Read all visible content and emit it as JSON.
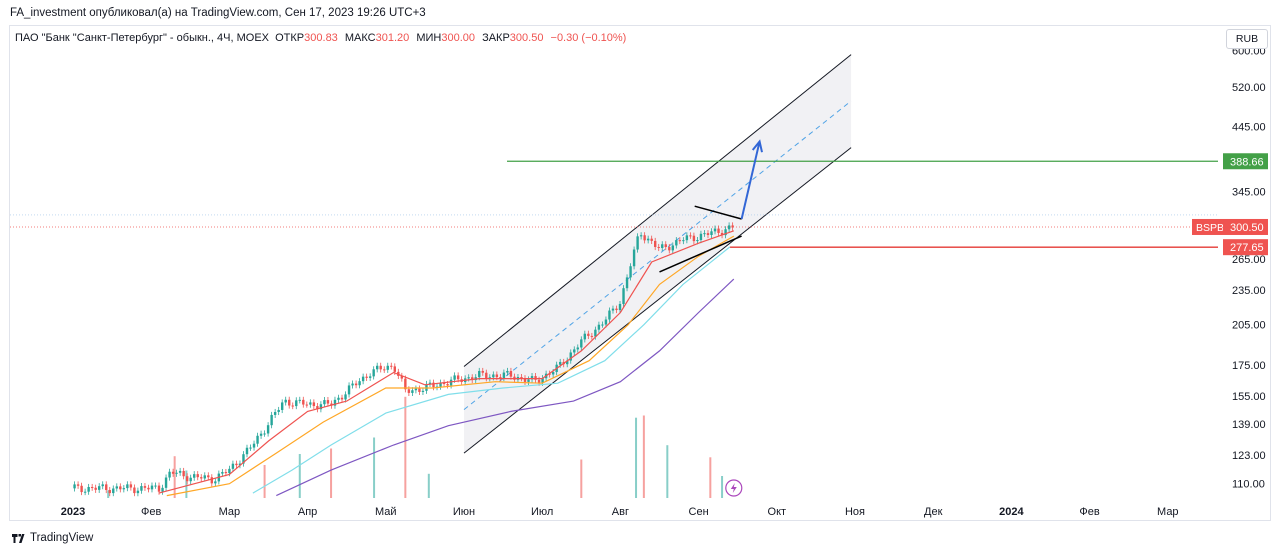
{
  "header": {
    "caption": "FA_investment опубликовал(а) на TradingView.com, Сен 17, 2023 19:26 UTC+3"
  },
  "legend": {
    "symbol": "ПАО \"Банк \"Санкт-Петербург\" - обыкн., 4Ч, MOEX",
    "open_label": "ОТКР",
    "open": "300.83",
    "high_label": "МАКС",
    "high": "301.20",
    "low_label": "МИН",
    "low": "300.00",
    "close_label": "ЗАКР",
    "close": "300.50",
    "change": "−0.30 (−0.10%)"
  },
  "currency": "RUB",
  "footer": {
    "brand": "TradingView"
  },
  "colors": {
    "up": "#26a69a",
    "down": "#ef5350",
    "channel": "#131722",
    "channel_fill": "#eeeff2",
    "midline": "#4fa3e6",
    "arrow": "#3367d6",
    "resistance": "#43a047",
    "support": "#e53935",
    "ma_fast": "#ef5350",
    "ma_mid": "#ffa726",
    "ma_slow": "#80deea",
    "ma_long": "#7e57c2",
    "lightning": "#ab47bc"
  },
  "chart_data": {
    "type": "candlestick",
    "y_scale": "log",
    "ylim": [
      104,
      660
    ],
    "y_ticks": [
      600.0,
      520.0,
      445.0,
      345.0,
      265.0,
      235.0,
      205.0,
      175.0,
      155.0,
      139.0,
      123.0,
      110.0
    ],
    "x_labels": [
      "2023",
      "Фев",
      "Мар",
      "Апр",
      "Май",
      "Июн",
      "Июл",
      "Авг",
      "Сен",
      "Окт",
      "Ноя",
      "Дек",
      "2024",
      "Фев",
      "Мар"
    ],
    "price_badges": [
      {
        "text": "388.66",
        "value": 388.66,
        "kind": "resistance"
      },
      {
        "ticker": "BSPB",
        "text": "300.50",
        "value": 300.5,
        "kind": "last"
      },
      {
        "text": "277.65",
        "value": 277.65,
        "kind": "support"
      }
    ],
    "price_path": [
      [
        0.0,
        108
      ],
      [
        1.1,
        108
      ],
      [
        1.25,
        115
      ],
      [
        1.5,
        113
      ],
      [
        1.8,
        112
      ],
      [
        2.0,
        116
      ],
      [
        2.3,
        128
      ],
      [
        2.7,
        152
      ],
      [
        3.0,
        150
      ],
      [
        3.3,
        150
      ],
      [
        3.5,
        158
      ],
      [
        3.8,
        170
      ],
      [
        4.1,
        175
      ],
      [
        4.25,
        158
      ],
      [
        4.5,
        160
      ],
      [
        4.8,
        164
      ],
      [
        5.2,
        168
      ],
      [
        5.6,
        168
      ],
      [
        5.9,
        164
      ],
      [
        6.2,
        173
      ],
      [
        6.5,
        192
      ],
      [
        6.8,
        208
      ],
      [
        7.0,
        225
      ],
      [
        7.25,
        295
      ],
      [
        7.5,
        275
      ],
      [
        7.8,
        286
      ],
      [
        8.1,
        292
      ],
      [
        8.35,
        298
      ],
      [
        8.45,
        300.5
      ]
    ],
    "moving_averages": [
      {
        "role": "fast",
        "points": [
          [
            1.1,
            106
          ],
          [
            2.0,
            114
          ],
          [
            2.5,
            130
          ],
          [
            3.0,
            146
          ],
          [
            3.5,
            152
          ],
          [
            4.1,
            170
          ],
          [
            4.5,
            162
          ],
          [
            5.2,
            166
          ],
          [
            6.0,
            166
          ],
          [
            6.5,
            185
          ],
          [
            7.0,
            215
          ],
          [
            7.4,
            262
          ],
          [
            8.0,
            282
          ],
          [
            8.45,
            296
          ]
        ]
      },
      {
        "role": "mid",
        "points": [
          [
            1.2,
            105
          ],
          [
            2.0,
            110
          ],
          [
            2.6,
            124
          ],
          [
            3.2,
            140
          ],
          [
            4.0,
            160
          ],
          [
            4.6,
            160
          ],
          [
            5.4,
            164
          ],
          [
            6.0,
            163
          ],
          [
            6.6,
            178
          ],
          [
            7.1,
            205
          ],
          [
            7.5,
            240
          ],
          [
            8.0,
            268
          ],
          [
            8.45,
            290
          ]
        ]
      },
      {
        "role": "slow",
        "points": [
          [
            2.3,
            106
          ],
          [
            2.8,
            116
          ],
          [
            3.3,
            128
          ],
          [
            4.0,
            145
          ],
          [
            4.8,
            156
          ],
          [
            5.5,
            160
          ],
          [
            6.2,
            163
          ],
          [
            6.8,
            178
          ],
          [
            7.3,
            205
          ],
          [
            7.8,
            240
          ],
          [
            8.4,
            278
          ]
        ]
      },
      {
        "role": "long",
        "points": [
          [
            2.6,
            105
          ],
          [
            3.3,
            116
          ],
          [
            4.1,
            128
          ],
          [
            4.8,
            138
          ],
          [
            5.6,
            146
          ],
          [
            6.4,
            152
          ],
          [
            7.0,
            164
          ],
          [
            7.5,
            185
          ],
          [
            8.0,
            215
          ],
          [
            8.45,
            245
          ]
        ]
      }
    ],
    "volume_range": [
      0,
      1
    ],
    "volume": [
      [
        0.45,
        0.07
      ],
      [
        1.3,
        0.38
      ],
      [
        1.45,
        0.25
      ],
      [
        2.45,
        0.3
      ],
      [
        2.9,
        0.4
      ],
      [
        3.3,
        0.45
      ],
      [
        3.85,
        0.55
      ],
      [
        4.25,
        0.92
      ],
      [
        4.55,
        0.22
      ],
      [
        6.5,
        0.35
      ],
      [
        7.2,
        0.73
      ],
      [
        7.3,
        0.75
      ],
      [
        7.6,
        0.48
      ],
      [
        8.15,
        0.37
      ],
      [
        8.3,
        0.2
      ]
    ],
    "annotations": {
      "channel": {
        "upper": [
          [
            5.0,
            174
          ],
          [
            9.95,
            590
          ]
        ],
        "lower": [
          [
            5.0,
            124
          ],
          [
            9.95,
            410
          ]
        ],
        "mid_dashed": [
          [
            5.0,
            147
          ],
          [
            9.95,
            492
          ]
        ]
      },
      "triangle_upper": [
        [
          7.95,
          326
        ],
        [
          8.55,
          310
        ]
      ],
      "triangle_lower": [
        [
          7.5,
          252
        ],
        [
          8.55,
          290
        ]
      ],
      "arrow": [
        [
          8.55,
          310
        ],
        [
          8.78,
          420
        ]
      ],
      "resistance_level": {
        "value": 388.66,
        "from_x": 5.55
      },
      "support_level": {
        "value": 277.65,
        "from_x": 8.4
      }
    }
  }
}
